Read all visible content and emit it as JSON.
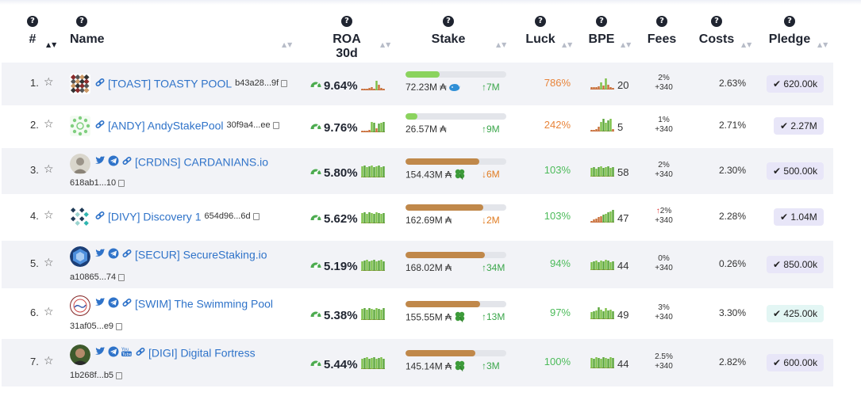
{
  "header": {
    "rank": "#",
    "name": "Name",
    "roa": "ROA 30d",
    "stake": "Stake",
    "luck": "Luck",
    "bpe": "BPE",
    "fees": "Fees",
    "costs": "Costs",
    "pledge": "Pledge",
    "help_glyph": "?"
  },
  "colors": {
    "link": "#2f73c9",
    "stake_green": "#8bd35e",
    "stake_brown": "#c0884a",
    "luck_orange": "#e8843a",
    "luck_green": "#4cbb5a",
    "pledge_purple": "#e8e6f8",
    "pledge_mint": "#e3f6f4"
  },
  "pools": [
    {
      "rank": "1.",
      "name": "[TOAST] TOASTY POOL",
      "hash": "b43a28...9f",
      "socials": [
        "link-icon"
      ],
      "roa": "9.64%",
      "stake_fill": 0.34,
      "stake_color": "green",
      "stake": "72.23M ₳",
      "badge": "whale-icon",
      "stake_delta": "↑7M",
      "delta_dir": "up",
      "luck": "786%",
      "luck_color": "orange",
      "bpe": "20",
      "fee_pct": "2%",
      "fee_fixed": "+340",
      "fee_up": false,
      "costs": "2.63%",
      "pledge": "✔ 620.00k",
      "pledge_style": "purple"
    },
    {
      "rank": "2.",
      "name": "[ANDY] AndyStakePool",
      "hash": "30f9a4...ee",
      "socials": [
        "link-icon"
      ],
      "roa": "9.76%",
      "stake_fill": 0.12,
      "stake_color": "green",
      "stake": "26.57M ₳",
      "badge": "",
      "stake_delta": "↑9M",
      "delta_dir": "up",
      "luck": "242%",
      "luck_color": "orange",
      "bpe": "5",
      "fee_pct": "1%",
      "fee_fixed": "+340",
      "fee_up": false,
      "costs": "2.71%",
      "pledge": "✔ 2.27M",
      "pledge_style": "purple"
    },
    {
      "rank": "3.",
      "name": "[CRDNS] CARDANIANS.io",
      "hash": "618ab1...10",
      "socials": [
        "twitter-icon",
        "telegram-icon",
        "link-icon"
      ],
      "roa": "5.80%",
      "stake_fill": 0.73,
      "stake_color": "brown",
      "stake": "154.43M ₳",
      "badge": "clover-icon",
      "stake_delta": "↓6M",
      "delta_dir": "down",
      "luck": "103%",
      "luck_color": "green",
      "bpe": "58",
      "fee_pct": "2%",
      "fee_fixed": "+340",
      "fee_up": false,
      "costs": "2.30%",
      "pledge": "✔ 500.00k",
      "pledge_style": "purple"
    },
    {
      "rank": "4.",
      "name": "[DIVY] Discovery 1",
      "hash": "654d96...6d",
      "socials": [
        "link-icon"
      ],
      "roa": "5.62%",
      "stake_fill": 0.77,
      "stake_color": "brown",
      "stake": "162.69M ₳",
      "badge": "",
      "stake_delta": "↓2M",
      "delta_dir": "down",
      "luck": "103%",
      "luck_color": "green",
      "bpe": "47",
      "fee_pct": "2%",
      "fee_fixed": "+340",
      "fee_up": true,
      "costs": "2.28%",
      "pledge": "✔ 1.04M",
      "pledge_style": "purple"
    },
    {
      "rank": "5.",
      "name": "[SECUR] SecureStaking.io",
      "hash": "a10865...74",
      "socials": [
        "twitter-icon",
        "telegram-icon",
        "link-icon"
      ],
      "roa": "5.19%",
      "stake_fill": 0.79,
      "stake_color": "brown",
      "stake": "168.02M ₳",
      "badge": "",
      "stake_delta": "↑34M",
      "delta_dir": "up",
      "luck": "94%",
      "luck_color": "green",
      "bpe": "44",
      "fee_pct": "0%",
      "fee_fixed": "+340",
      "fee_up": false,
      "costs": "0.26%",
      "pledge": "✔ 850.00k",
      "pledge_style": "purple"
    },
    {
      "rank": "6.",
      "name": "[SWIM] The Swimming Pool",
      "hash": "31af05...e9",
      "socials": [
        "twitter-icon",
        "telegram-icon",
        "link-icon"
      ],
      "roa": "5.38%",
      "stake_fill": 0.74,
      "stake_color": "brown",
      "stake": "155.55M ₳",
      "badge": "clover-icon",
      "stake_delta": "↑13M",
      "delta_dir": "up",
      "luck": "97%",
      "luck_color": "green",
      "bpe": "49",
      "fee_pct": "3%",
      "fee_fixed": "+340",
      "fee_up": false,
      "costs": "3.30%",
      "pledge": "✔ 425.00k",
      "pledge_style": "mint"
    },
    {
      "rank": "7.",
      "name": "[DIGI] Digital Fortress",
      "hash": "1b268f...b5",
      "socials": [
        "twitter-icon",
        "telegram-icon",
        "youtube-icon",
        "link-icon"
      ],
      "roa": "5.44%",
      "stake_fill": 0.69,
      "stake_color": "brown",
      "stake": "145.14M ₳",
      "badge": "clover-icon",
      "stake_delta": "↑3M",
      "delta_dir": "up",
      "luck": "100%",
      "luck_color": "green",
      "bpe": "44",
      "fee_pct": "2.5%",
      "fee_fixed": "+340",
      "fee_up": false,
      "costs": "2.82%",
      "pledge": "✔ 600.00k",
      "pledge_style": "purple"
    }
  ]
}
